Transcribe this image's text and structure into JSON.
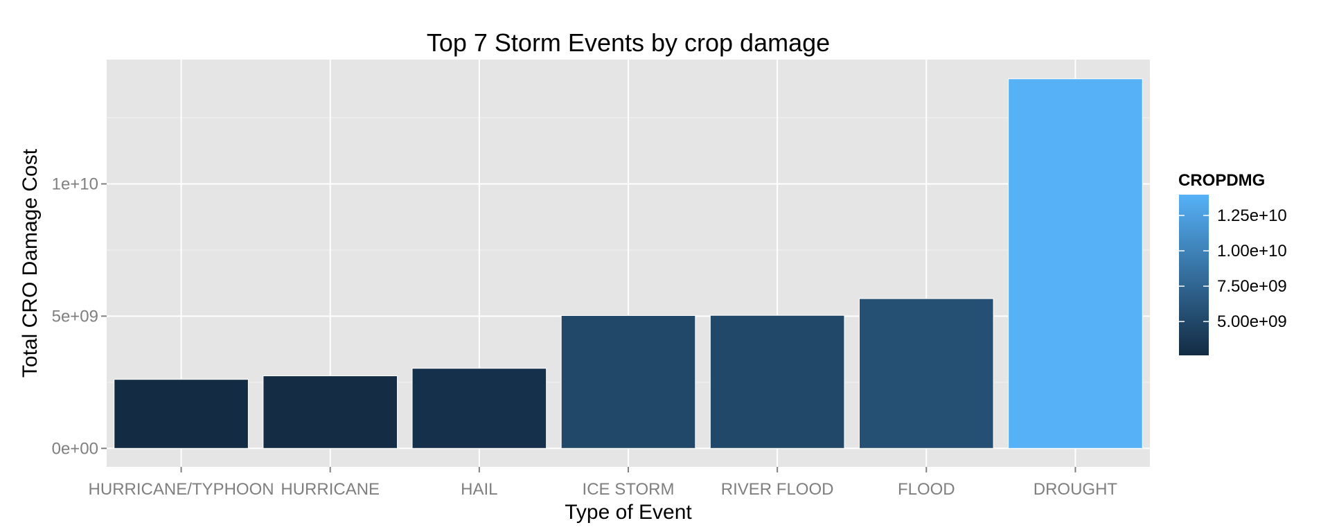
{
  "chart_data": {
    "type": "bar",
    "title": "Top 7 Storm Events by crop damage",
    "xlabel": "Type of Event",
    "ylabel": "Total CRO Damage Cost",
    "categories": [
      "HURRICANE/TYPHOON",
      "HURRICANE",
      "HAIL",
      "ICE STORM",
      "RIVER FLOOD",
      "FLOOD",
      "DROUGHT"
    ],
    "values": [
      2607872800,
      2741910000,
      3026094623,
      5022113500,
      5029459000,
      5661968450,
      13972566000
    ],
    "ylim": [
      -700000000,
      14700000000
    ],
    "yticks": [
      0,
      5000000000,
      10000000000
    ],
    "ytick_labels": [
      "0e+00",
      "5e+09",
      "1e+10"
    ],
    "grid": true,
    "panel_background": "#e5e5e5",
    "legend": {
      "title": "CROPDMG",
      "position": "right",
      "range": [
        2607872800,
        13972566000
      ],
      "breaks": [
        5000000000,
        7500000000,
        10000000000,
        12500000000
      ],
      "labels": [
        "5.00e+09",
        "7.50e+09",
        "1.00e+10",
        "1.25e+10"
      ],
      "color_low": "#132b43",
      "color_high": "#56b1f7"
    }
  }
}
